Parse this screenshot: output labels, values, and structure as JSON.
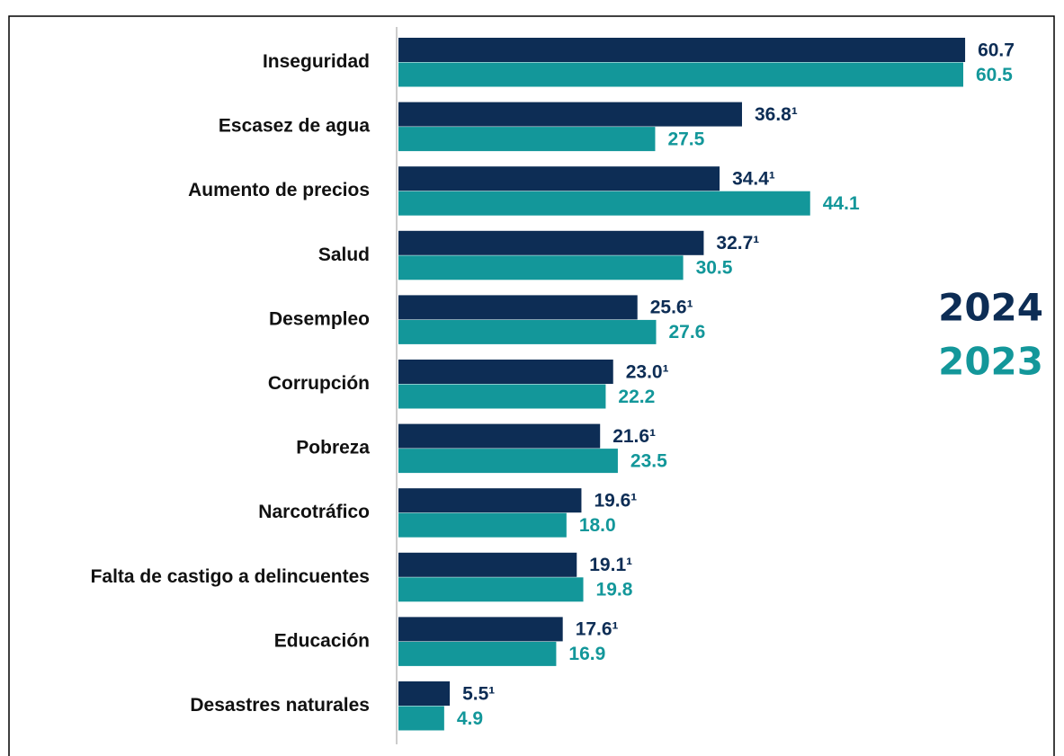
{
  "chart_data": {
    "type": "bar",
    "orientation": "horizontal",
    "categories": [
      "Inseguridad",
      "Escasez de agua",
      "Aumento de precios",
      "Salud",
      "Desempleo",
      "Corrupción",
      "Pobreza",
      "Narcotráfico",
      "Falta de castigo a delincuentes",
      "Educación",
      "Desastres naturales"
    ],
    "series": [
      {
        "name": "2024",
        "color": "#0d2d55",
        "values": [
          60.7,
          36.8,
          34.4,
          32.7,
          25.6,
          23.0,
          21.6,
          19.6,
          19.1,
          17.6,
          5.5
        ],
        "value_labels": [
          "60.7",
          "36.8¹",
          "34.4¹",
          "32.7¹",
          "25.6¹",
          "23.0¹",
          "21.6¹",
          "19.6¹",
          "19.1¹",
          "17.6¹",
          "5.5¹"
        ]
      },
      {
        "name": "2023",
        "color": "#13979a",
        "values": [
          60.5,
          27.5,
          44.1,
          30.5,
          27.6,
          22.2,
          23.5,
          18.0,
          19.8,
          16.9,
          4.9
        ],
        "value_labels": [
          "60.5",
          "27.5",
          "44.1",
          "30.5",
          "27.6",
          "22.2",
          "23.5",
          "18.0",
          "19.8",
          "16.9",
          "4.9"
        ]
      }
    ]
  }
}
